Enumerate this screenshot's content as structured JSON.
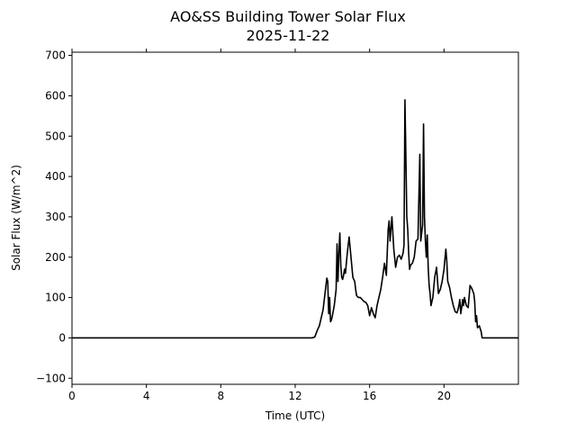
{
  "chart_data": {
    "type": "line",
    "title": "AO&SS Building Tower Solar Flux",
    "subtitle": "2025-11-22",
    "xlabel": "Time (UTC)",
    "ylabel": "Solar Flux (W/m^2)",
    "xlim": [
      0,
      24
    ],
    "ylim": [
      -115,
      708
    ],
    "xticks": [
      0,
      4,
      8,
      12,
      16,
      20
    ],
    "xtick_labels": [
      "0",
      "4",
      "8",
      "12",
      "16",
      "20"
    ],
    "yticks": [
      -100,
      0,
      100,
      200,
      300,
      400,
      500,
      600,
      700
    ],
    "ytick_labels": [
      "−100",
      "0",
      "100",
      "200",
      "300",
      "400",
      "500",
      "600",
      "700"
    ],
    "grid": false,
    "line_color": "#000000",
    "series": [
      {
        "name": "",
        "x": [
          0,
          12.9,
          13.05,
          13.2,
          13.3,
          13.5,
          13.7,
          13.75,
          13.8,
          13.85,
          13.9,
          13.95,
          14.0,
          14.1,
          14.2,
          14.25,
          14.3,
          14.35,
          14.4,
          14.45,
          14.5,
          14.55,
          14.6,
          14.65,
          14.7,
          14.8,
          14.9,
          15.0,
          15.1,
          15.2,
          15.25,
          15.3,
          15.4,
          15.5,
          15.6,
          15.7,
          15.8,
          15.9,
          16.0,
          16.1,
          16.2,
          16.3,
          16.4,
          16.5,
          16.6,
          16.7,
          16.8,
          16.9,
          17.0,
          17.05,
          17.1,
          17.2,
          17.3,
          17.4,
          17.5,
          17.6,
          17.7,
          17.8,
          17.85,
          17.9,
          17.95,
          18.0,
          18.05,
          18.1,
          18.15,
          18.2,
          18.3,
          18.4,
          18.5,
          18.6,
          18.7,
          18.75,
          18.8,
          18.85,
          18.9,
          18.95,
          19.0,
          19.05,
          19.1,
          19.15,
          19.2,
          19.25,
          19.3,
          19.4,
          19.5,
          19.6,
          19.7,
          19.8,
          19.9,
          20.0,
          20.1,
          20.15,
          20.2,
          20.3,
          20.4,
          20.5,
          20.6,
          20.7,
          20.75,
          20.8,
          20.85,
          20.9,
          20.95,
          21.0,
          21.05,
          21.1,
          21.2,
          21.3,
          21.4,
          21.5,
          21.6,
          21.65,
          21.7,
          21.75,
          21.8,
          21.9,
          22.0,
          22.05,
          22.1,
          22.2,
          22.3,
          22.4,
          22.5,
          22.6,
          24.0
        ],
        "y": [
          0,
          0,
          2,
          20,
          30,
          70,
          148,
          140,
          60,
          100,
          40,
          45,
          55,
          80,
          120,
          233,
          140,
          210,
          260,
          180,
          150,
          145,
          155,
          170,
          160,
          210,
          250,
          200,
          150,
          140,
          120,
          105,
          100,
          100,
          95,
          90,
          88,
          80,
          55,
          75,
          60,
          50,
          80,
          100,
          120,
          150,
          185,
          155,
          270,
          290,
          240,
          300,
          220,
          175,
          200,
          205,
          195,
          210,
          230,
          590,
          450,
          300,
          270,
          210,
          170,
          180,
          185,
          200,
          240,
          245,
          455,
          240,
          260,
          280,
          530,
          300,
          240,
          200,
          255,
          175,
          130,
          110,
          80,
          100,
          150,
          175,
          110,
          120,
          140,
          170,
          220,
          190,
          140,
          125,
          100,
          80,
          65,
          62,
          70,
          80,
          95,
          60,
          75,
          95,
          80,
          100,
          80,
          75,
          130,
          122,
          110,
          90,
          40,
          55,
          25,
          30,
          15,
          0,
          0,
          0,
          0,
          0,
          0,
          0,
          0
        ]
      }
    ]
  }
}
